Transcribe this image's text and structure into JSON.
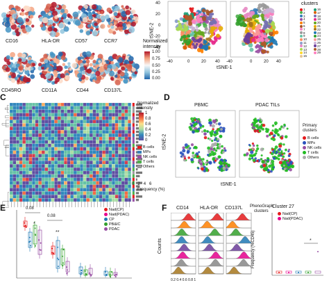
{
  "panels": {
    "a": {
      "markers_row1": [
        "CD16",
        "HLA-DR",
        "CD57",
        "CCR7"
      ],
      "markers_row2": [
        "CD45RO",
        "CD11A",
        "CD44",
        "CD137L"
      ],
      "colorbar": {
        "title": "Normalized intensity",
        "ticks": [
          "1.00",
          "0.75",
          "0.50",
          "0.25",
          "0.00"
        ]
      }
    },
    "b": {
      "xlabel": "tSNE-1",
      "ylabel": "tSNE-2",
      "xticks": [
        "-40",
        "0",
        "20",
        "40"
      ],
      "yticks": [
        "40",
        "20",
        "0",
        "-20",
        "-40"
      ],
      "legend_title": "clusters",
      "clusters": [
        "1",
        "2",
        "3",
        "4",
        "5",
        "6",
        "7",
        "8",
        "9",
        "10",
        "11",
        "12",
        "13",
        "14",
        "15",
        "16",
        "17",
        "18",
        "19",
        "20",
        "21",
        "22",
        "23",
        "24",
        "25",
        "26",
        "27",
        "28",
        "29"
      ],
      "colors": [
        "#e41a1c",
        "#4daf4a",
        "#377eb8",
        "#984ea3",
        "#ff7f00",
        "#a65628",
        "#f781bf",
        "#999999",
        "#66c2a5",
        "#fc8d62",
        "#8da0cb",
        "#e78ac3",
        "#a6d854",
        "#ffd92f",
        "#e5c494",
        "#1b9e77",
        "#d95f02",
        "#7570b3",
        "#e7298a",
        "#66a61e",
        "#e6ab02",
        "#a6761d",
        "#1f78b4",
        "#33a02c",
        "#fb9a99",
        "#cab2d6",
        "#6a3d9a",
        "#b15928",
        "#ff7fbf"
      ]
    },
    "c": {
      "label": "C",
      "colorbar": {
        "title": "Normalized intensity",
        "ticks": [
          "1",
          "0.8",
          "0.6",
          "0.4",
          "0.2",
          "0"
        ]
      },
      "groups": [
        "B cells",
        "MPs",
        "NK cells",
        "T cells",
        "Others"
      ],
      "group_colors": [
        "#e41a1c",
        "#377eb8",
        "#984ea3",
        "#4daf4a",
        "#999999"
      ],
      "freq_label": "Frequency (%)",
      "freq_ticks": [
        "0",
        "2",
        "4",
        "6"
      ]
    },
    "d": {
      "label": "D",
      "titles": [
        "PBMC",
        "PDAC TILs"
      ],
      "xlabel": "tSNE-1",
      "ylabel": "tSNE-2",
      "legend_title": "Primary clusters",
      "groups": [
        "B cells",
        "MPs",
        "NK cells",
        "T cells",
        "Others"
      ],
      "group_colors": [
        "#e41a1c",
        "#2a52be",
        "#984ea3",
        "#22bb22",
        "#aaaaaa"
      ]
    },
    "e": {
      "label": "E",
      "pvalues": [
        "0.08",
        "0.08"
      ],
      "stars": [
        "*",
        "**"
      ],
      "legend": [
        {
          "label": "Nad(CP)",
          "color": "#e41a1c"
        },
        {
          "label": "Nad(PDAC)",
          "color": "#e6008c"
        },
        {
          "label": "CP",
          "color": "#1f78b4"
        },
        {
          "label": "PB&IC",
          "color": "#33a02c"
        },
        {
          "label": "PDAC",
          "color": "#984ea3"
        }
      ]
    },
    "f": {
      "label": "F",
      "histogram_titles": [
        "CD14",
        "HLA-DR",
        "CD137L"
      ],
      "side_label_1": "PhenoGraph",
      "side_label_2": "clusters",
      "ylabel": "Counts",
      "xticks": "0.2 0.4 0.6 0.8 1",
      "cluster_title": "Cluster 27",
      "cluster_ylabel": "Frequency (%CD45)",
      "cluster_legend": [
        {
          "label": "Nad(CP)",
          "color": "#e41a1c"
        },
        {
          "label": "Nad(PDAC)",
          "color": "#e6008c"
        }
      ],
      "star": "*"
    }
  }
}
